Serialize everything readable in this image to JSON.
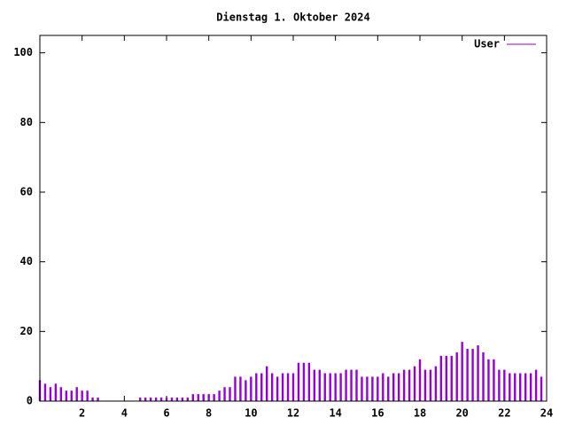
{
  "chart_data": {
    "type": "impulses",
    "title": "Dienstag 1. Oktober 2024",
    "x": [
      0,
      0.25,
      0.5,
      0.75,
      1,
      1.25,
      1.5,
      1.75,
      2,
      2.25,
      2.5,
      2.75,
      3,
      3.25,
      3.5,
      3.75,
      4,
      4.25,
      4.5,
      4.75,
      5,
      5.25,
      5.5,
      5.75,
      6,
      6.25,
      6.5,
      6.75,
      7,
      7.25,
      7.5,
      7.75,
      8,
      8.25,
      8.5,
      8.75,
      9,
      9.25,
      9.5,
      9.75,
      10,
      10.25,
      10.5,
      10.75,
      11,
      11.25,
      11.5,
      11.75,
      12,
      12.25,
      12.5,
      12.75,
      13,
      13.25,
      13.5,
      13.75,
      14,
      14.25,
      14.5,
      14.75,
      15,
      15.25,
      15.5,
      15.75,
      16,
      16.25,
      16.5,
      16.75,
      17,
      17.25,
      17.5,
      17.75,
      18,
      18.25,
      18.5,
      18.75,
      19,
      19.25,
      19.5,
      19.75,
      20,
      20.25,
      20.5,
      20.75,
      21,
      21.25,
      21.5,
      21.75,
      22,
      22.25,
      22.5,
      22.75,
      23,
      23.25,
      23.5,
      23.75
    ],
    "series": [
      {
        "name": "User",
        "color": "#9400d3",
        "values": [
          6,
          5,
          4,
          5,
          4,
          3,
          3,
          4,
          3,
          3,
          1,
          1,
          0,
          0,
          0,
          0,
          0,
          0,
          0,
          1,
          1,
          1,
          1,
          1,
          1,
          1,
          1,
          1,
          1,
          2,
          2,
          2,
          2,
          2,
          3,
          4,
          4,
          7,
          7,
          6,
          7,
          8,
          8,
          10,
          8,
          7,
          8,
          8,
          8,
          11,
          11,
          11,
          9,
          9,
          8,
          8,
          8,
          8,
          9,
          9,
          9,
          7,
          7,
          7,
          7,
          8,
          7,
          8,
          8,
          9,
          9,
          10,
          12,
          9,
          9,
          10,
          13,
          13,
          13,
          14,
          17,
          15,
          15,
          16,
          14,
          12,
          12,
          9,
          9,
          8,
          8,
          8,
          8,
          8,
          9,
          7
        ]
      }
    ],
    "xlim": [
      0,
      24
    ],
    "ylim": [
      0,
      105
    ],
    "xticks": [
      2,
      4,
      6,
      8,
      10,
      12,
      14,
      16,
      18,
      20,
      22,
      24
    ],
    "yticks": [
      0,
      20,
      40,
      60,
      80,
      100
    ],
    "legend": "top-right"
  }
}
